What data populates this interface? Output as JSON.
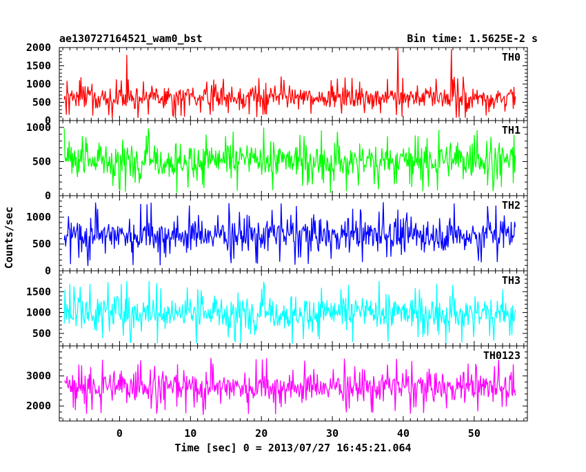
{
  "chart_data": {
    "type": "line",
    "title_left": "ae130727164521_wam0_bst",
    "title_right": "Bin time: 1.5625E-2 s",
    "xlabel": "Time [sec] 0 = 2013/07/27 16:45:21.064",
    "ylabel": "Counts/sec",
    "xlim": [
      -8.5,
      57.5
    ],
    "data_range": [
      -7.8,
      55.8
    ],
    "bin_time": 0.015625,
    "x_ticks": [
      0,
      10,
      20,
      30,
      40,
      50
    ],
    "x_tick_labels": [
      "0",
      "10",
      "20",
      "30",
      "40",
      "50"
    ],
    "panels": [
      {
        "name": "TH0",
        "color": "#ff0000",
        "ylim": [
          0,
          2000
        ],
        "y_ticks": [
          0,
          500,
          1000,
          1500,
          2000
        ],
        "y_tick_labels": [
          "0",
          "500",
          "1000",
          "1500",
          "2000"
        ],
        "mean": 640,
        "spread": 290,
        "floor": 0,
        "upper_spikes": [
          [
            1.0,
            1800
          ],
          [
            39.2,
            2000
          ],
          [
            46.8,
            1950
          ]
        ]
      },
      {
        "name": "TH1",
        "color": "#00ff00",
        "ylim": [
          0,
          1100
        ],
        "y_ticks": [
          0,
          500,
          1000
        ],
        "y_tick_labels": [
          "0",
          "500",
          "1000"
        ],
        "mean": 520,
        "spread": 240,
        "floor": 0,
        "upper_spikes": []
      },
      {
        "name": "TH2",
        "color": "#0000ff",
        "ylim": [
          0,
          1400
        ],
        "y_ticks": [
          0,
          500,
          1000
        ],
        "y_tick_labels": [
          "0",
          "500",
          "1000"
        ],
        "mean": 680,
        "spread": 300,
        "floor": 0,
        "upper_spikes": []
      },
      {
        "name": "TH3",
        "color": "#00ffff",
        "ylim": [
          200,
          2000
        ],
        "y_ticks": [
          500,
          1000,
          1500
        ],
        "y_tick_labels": [
          "500",
          "1000",
          "1500"
        ],
        "mean": 1000,
        "spread": 380,
        "floor": 200,
        "upper_spikes": []
      },
      {
        "name": "TH0123",
        "color": "#ff00ff",
        "ylim": [
          1500,
          4000
        ],
        "y_ticks": [
          2000,
          3000
        ],
        "y_tick_labels": [
          "2000",
          "3000"
        ],
        "mean": 2650,
        "spread": 480,
        "floor": 1500,
        "upper_spikes": []
      }
    ]
  }
}
